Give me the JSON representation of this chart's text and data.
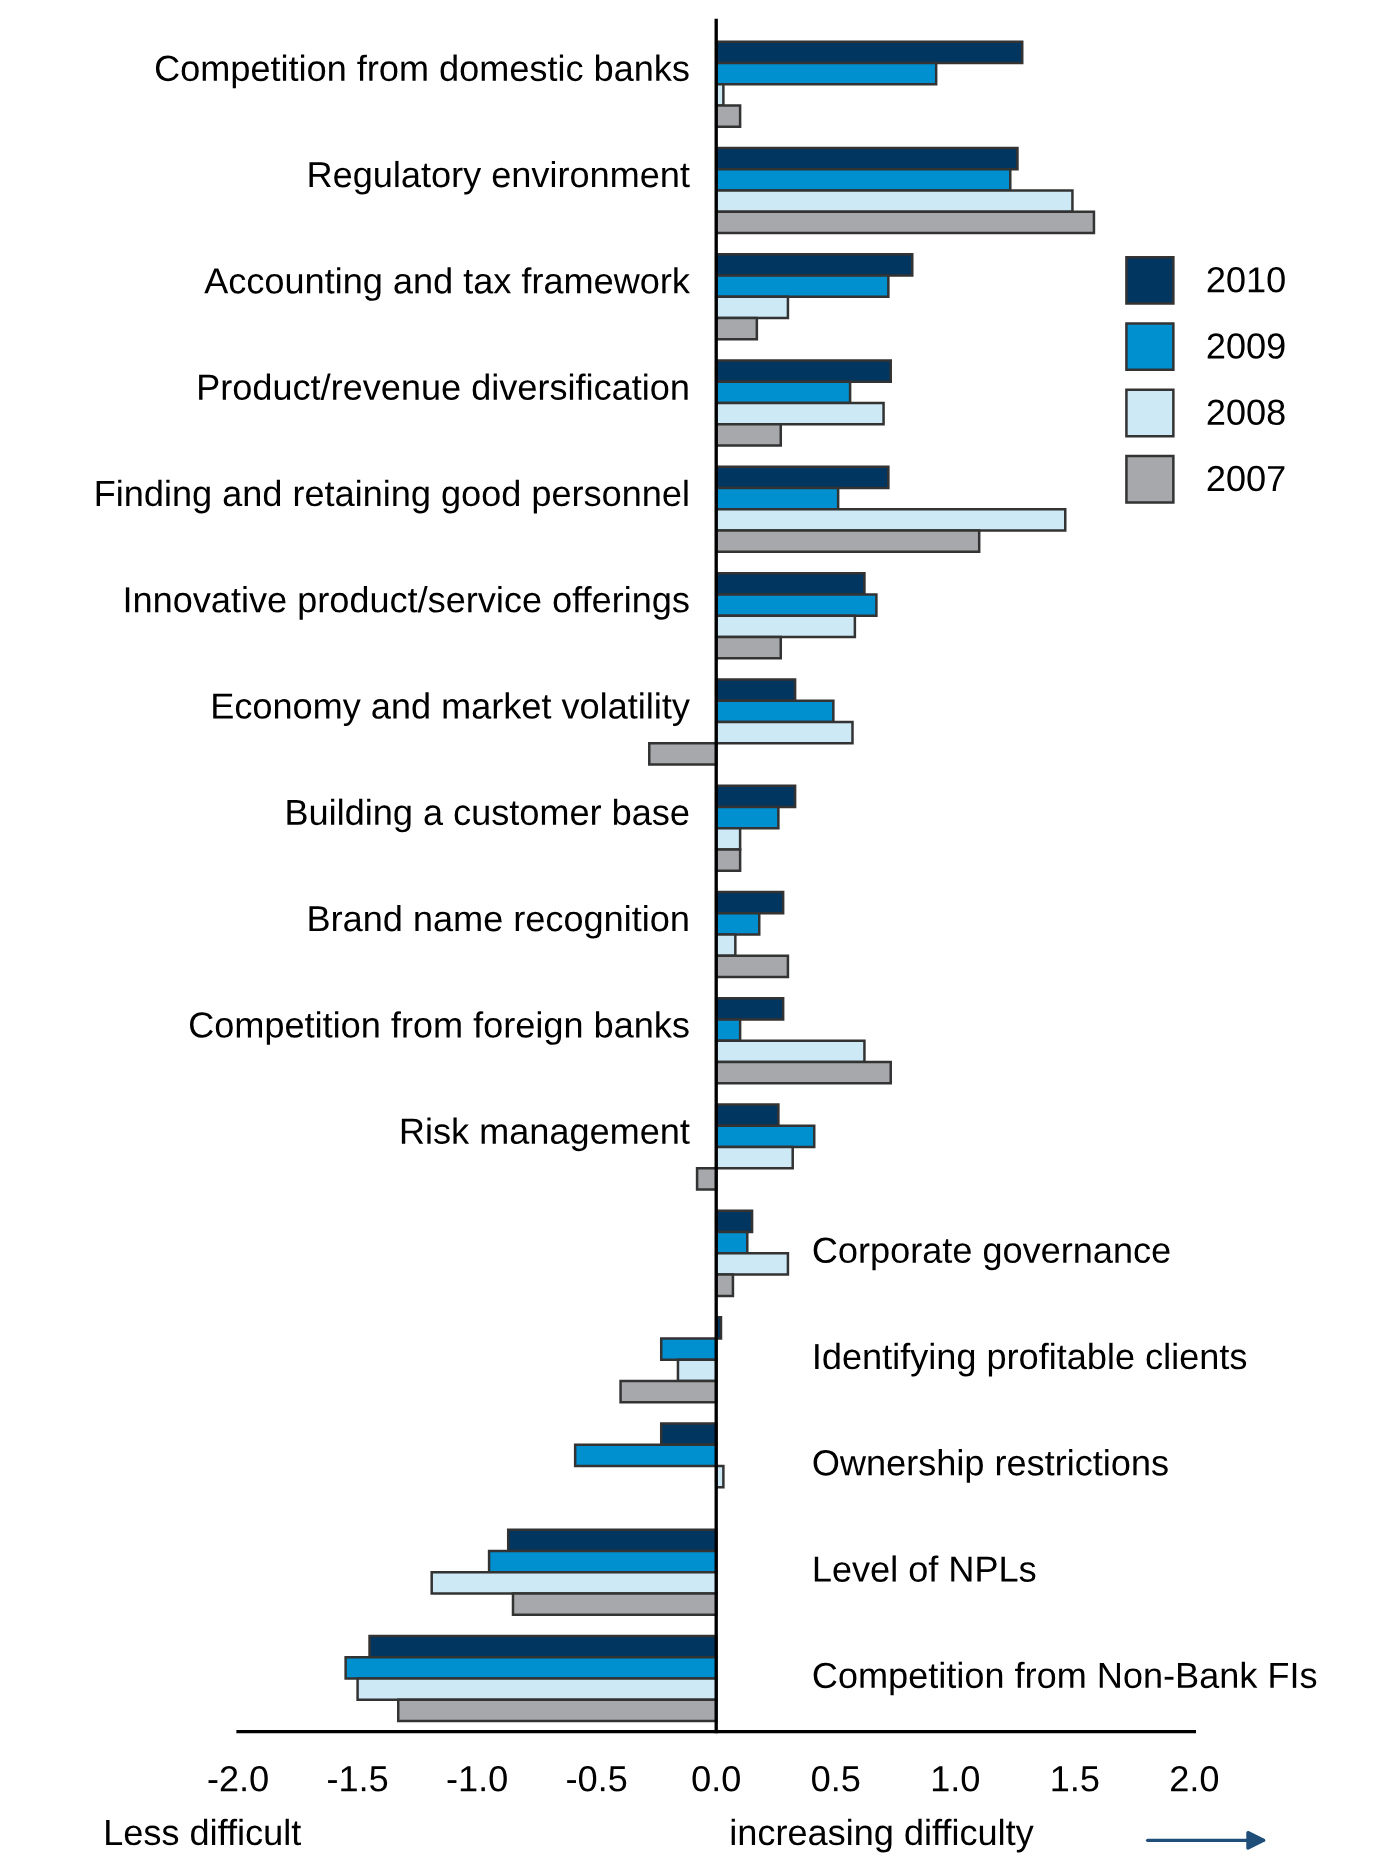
{
  "chart_data": {
    "type": "bar",
    "orientation": "horizontal",
    "categories": [
      "Competition from domestic banks",
      "Regulatory environment",
      "Accounting and tax framework",
      "Product/revenue diversification",
      "Finding and retaining good personnel",
      "Innovative product/service offerings",
      "Economy and market volatility",
      "Building a customer base",
      "Brand name recognition",
      "Competition from foreign banks",
      "Risk management",
      "Corporate governance",
      "Identifying profitable clients",
      "Ownership restrictions",
      "Level of NPLs",
      "Competition from Non-Bank FIs"
    ],
    "series": [
      {
        "name": "2010",
        "color": "#003660",
        "values": [
          1.28,
          1.26,
          0.82,
          0.73,
          0.72,
          0.62,
          0.33,
          0.33,
          0.28,
          0.28,
          0.26,
          0.15,
          0.02,
          -0.23,
          -0.87,
          -1.45
        ]
      },
      {
        "name": "2009",
        "color": "#0090d0",
        "values": [
          0.92,
          1.23,
          0.72,
          0.56,
          0.51,
          0.67,
          0.49,
          0.26,
          0.18,
          0.1,
          0.41,
          0.13,
          -0.23,
          -0.59,
          -0.95,
          -1.55
        ]
      },
      {
        "name": "2008",
        "color": "#cce9f5",
        "values": [
          0.03,
          1.49,
          0.3,
          0.7,
          1.46,
          0.58,
          0.57,
          0.1,
          0.08,
          0.62,
          0.32,
          0.3,
          -0.16,
          0.03,
          -1.19,
          -1.5
        ]
      },
      {
        "name": "2007",
        "color": "#a6a8ab",
        "values": [
          0.1,
          1.58,
          0.17,
          0.27,
          1.1,
          0.27,
          -0.28,
          0.1,
          0.3,
          0.73,
          -0.08,
          0.07,
          -0.4,
          null,
          -0.85,
          -1.33
        ]
      }
    ],
    "xlim": [
      -2.0,
      2.0
    ],
    "xticks": [
      {
        "value": -2,
        "label": "-2.0"
      },
      {
        "value": -1.5,
        "label": "-1.5"
      },
      {
        "value": -1,
        "label": "-1.0"
      },
      {
        "value": -0.5,
        "label": "-0.5"
      },
      {
        "value": 0,
        "label": "0.0"
      },
      {
        "value": 0.5,
        "label": "0.5"
      },
      {
        "value": 1,
        "label": "1.0"
      },
      {
        "value": 1.5,
        "label": "1.5"
      },
      {
        "value": 2,
        "label": "2.0"
      }
    ],
    "annotations": [
      "Less difficult",
      "increasing difficulty"
    ],
    "legend": "right",
    "grid": false
  }
}
